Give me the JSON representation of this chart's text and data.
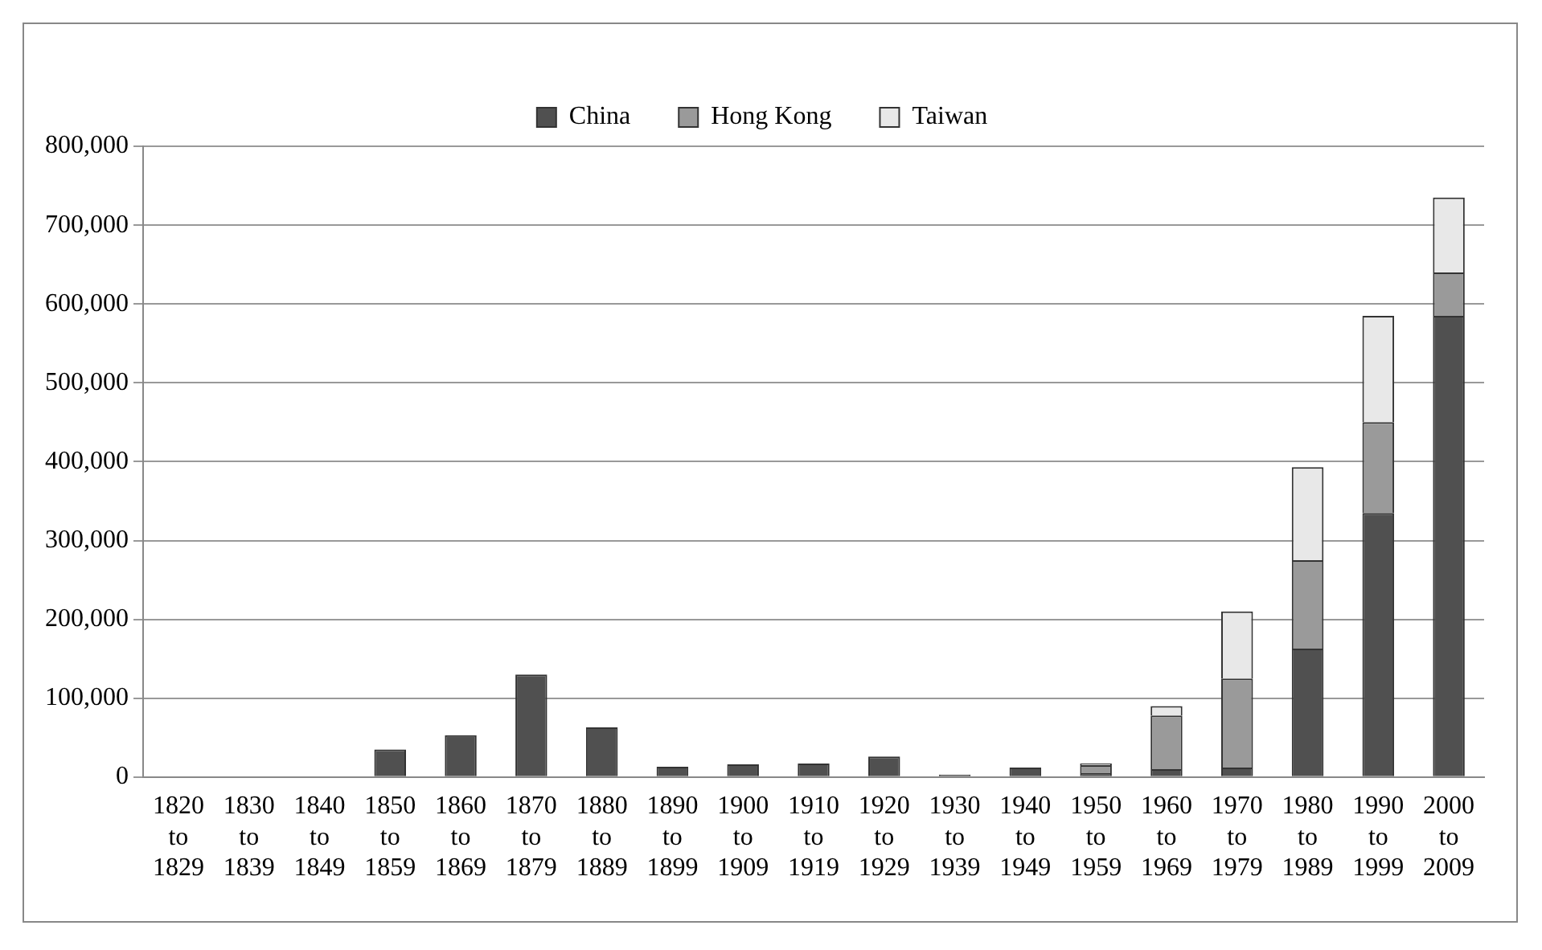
{
  "chart_data": {
    "type": "bar",
    "stacked": true,
    "categories": [
      "1820 to 1829",
      "1830 to 1839",
      "1840 to 1849",
      "1850 to 1859",
      "1860 to 1869",
      "1870 to 1879",
      "1880 to 1889",
      "1890 to 1899",
      "1900 to 1909",
      "1910 to 1919",
      "1920 to 1929",
      "1930 to 1939",
      "1940 to 1949",
      "1950 to 1959",
      "1960 to 1969",
      "1970 to 1979",
      "1980 to 1989",
      "1990 to 1999",
      "2000 to 2009"
    ],
    "series": [
      {
        "name": "China",
        "color": "#505050",
        "values": [
          0,
          0,
          0,
          35000,
          53000,
          130000,
          63000,
          13000,
          16000,
          17000,
          26000,
          3000,
          12000,
          5000,
          10000,
          12000,
          163000,
          335000,
          585000
        ]
      },
      {
        "name": "Hong Kong",
        "color": "#9a9a9a",
        "values": [
          null,
          null,
          null,
          null,
          null,
          null,
          null,
          null,
          null,
          null,
          null,
          null,
          null,
          10000,
          68000,
          113000,
          112000,
          115000,
          55000
        ]
      },
      {
        "name": "Taiwan",
        "color": "#e8e8e8",
        "values": [
          null,
          null,
          null,
          null,
          null,
          null,
          null,
          null,
          null,
          null,
          null,
          null,
          null,
          2000,
          12000,
          85000,
          118000,
          135000,
          95000
        ]
      }
    ],
    "ylim": [
      0,
      800000
    ],
    "yticks": [
      0,
      {
        "value": 100000,
        "label": "100,000"
      },
      {
        "value": 200000,
        "label": "200,000"
      },
      {
        "value": 300000,
        "label": "300,000"
      },
      {
        "value": 400000,
        "label": "400,000"
      },
      {
        "value": 500000,
        "label": "500,000"
      },
      {
        "value": 600000,
        "label": "600,000"
      },
      {
        "value": 700000,
        "label": "700,000"
      },
      {
        "value": 800000,
        "label": "800,000"
      }
    ],
    "grid": "y",
    "legend": "top"
  }
}
